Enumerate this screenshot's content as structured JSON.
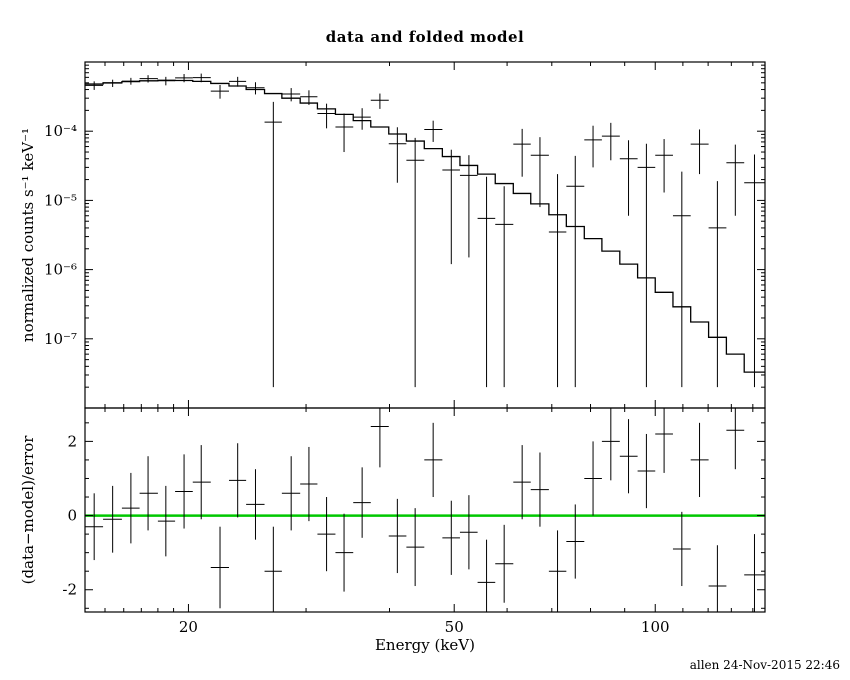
{
  "title": "data and folded model",
  "timestamp": "allen 24-Nov-2015 22:46",
  "colors": {
    "foreground": "#000000",
    "background": "#ffffff",
    "zero_line": "#00c800"
  },
  "x_axis": {
    "label": "Energy (keV)",
    "scale": "log",
    "lim": [
      14,
      146
    ],
    "major_ticks": [
      20,
      50,
      100
    ],
    "major_labels": [
      "20",
      "50",
      "100"
    ],
    "minor_ticks": [
      15,
      16,
      17,
      18,
      19,
      30,
      40,
      60,
      70,
      80,
      90,
      110,
      120,
      130,
      140
    ]
  },
  "chart_data": [
    {
      "id": "main",
      "type": "line",
      "title": "data and folded model",
      "ylabel": "normalized counts s⁻¹ keV⁻¹",
      "xlabel": "Energy (keV)",
      "xscale": "log",
      "yscale": "log",
      "xlim": [
        14,
        146
      ],
      "ylim": [
        1e-08,
        0.001
      ],
      "grid": false,
      "legend": null,
      "y_major_ticks": [
        0.0001,
        1e-05,
        1e-06,
        1e-07
      ],
      "y_major_labels": [
        "10⁻⁴",
        "10⁻⁵",
        "10⁻⁶",
        "10⁻⁷"
      ],
      "model_step": {
        "edges": [
          14.0,
          14.9,
          15.9,
          16.9,
          18.0,
          19.1,
          20.3,
          21.6,
          23.0,
          24.4,
          26.0,
          27.6,
          29.4,
          31.2,
          33.2,
          35.3,
          37.5,
          39.9,
          42.4,
          45.1,
          48.0,
          51.0,
          54.2,
          57.6,
          61.3,
          65.1,
          69.3,
          73.6,
          78.3,
          83.2,
          88.5,
          94.1,
          100.0,
          106.3,
          113.0,
          120.2,
          127.8,
          135.9,
          146.0
        ],
        "values": [
          0.00048,
          0.0005,
          0.00052,
          0.000535,
          0.000545,
          0.00054,
          0.000525,
          0.00049,
          0.00045,
          0.0004,
          0.00035,
          0.0003,
          0.000255,
          0.00021,
          0.000175,
          0.000142,
          0.000115,
          9.1e-05,
          7.2e-05,
          5.6e-05,
          4.3e-05,
          3.2e-05,
          2.4e-05,
          1.75e-05,
          1.26e-05,
          8.9e-06,
          6.2e-06,
          4.2e-06,
          2.8e-06,
          1.85e-06,
          1.2e-06,
          7.6e-07,
          4.7e-07,
          2.9e-07,
          1.75e-07,
          1.05e-07,
          6e-08,
          3.3e-08
        ]
      },
      "points": [
        [
          14.45,
          14.0,
          14.9,
          0.00046,
          0.000395,
          0.000525
        ],
        [
          15.4,
          14.9,
          15.9,
          0.000495,
          0.000435,
          0.000555
        ],
        [
          16.4,
          15.9,
          16.9,
          0.00053,
          0.00047,
          0.00059
        ],
        [
          17.4,
          16.9,
          18.0,
          0.000575,
          0.000505,
          0.000645
        ],
        [
          18.5,
          18.0,
          19.1,
          0.000535,
          0.00046,
          0.00061
        ],
        [
          19.7,
          19.1,
          20.3,
          0.00059,
          0.00051,
          0.00067
        ],
        [
          20.9,
          20.3,
          21.6,
          0.000595,
          0.00051,
          0.00068
        ],
        [
          22.3,
          21.6,
          23.0,
          0.00038,
          0.000295,
          0.000465
        ],
        [
          23.7,
          23.0,
          24.4,
          0.000525,
          0.00044,
          0.00061
        ],
        [
          25.2,
          24.4,
          26.0,
          0.000425,
          0.00034,
          0.00051
        ],
        [
          26.8,
          26.0,
          27.6,
          0.000135,
          2e-08,
          0.000265
        ],
        [
          28.5,
          27.6,
          29.4,
          0.000345,
          0.00027,
          0.00042
        ],
        [
          30.3,
          29.4,
          31.2,
          0.000315,
          0.00024,
          0.00039
        ],
        [
          32.2,
          31.2,
          33.2,
          0.00018,
          0.00011,
          0.00025
        ],
        [
          34.2,
          33.2,
          35.3,
          0.000115,
          5e-05,
          0.00018
        ],
        [
          36.4,
          35.3,
          37.5,
          0.00016,
          0.000105,
          0.000215
        ],
        [
          38.7,
          37.5,
          39.9,
          0.00028,
          0.00021,
          0.00035
        ],
        [
          41.1,
          39.9,
          42.4,
          6.6e-05,
          1.8e-05,
          0.000114
        ],
        [
          43.7,
          42.4,
          45.1,
          3.8e-05,
          2e-08,
          8e-05
        ],
        [
          46.5,
          45.1,
          48.0,
          0.000106,
          7e-05,
          0.000142
        ],
        [
          49.5,
          48.0,
          51.0,
          2.75e-05,
          1.2e-06,
          5.4e-05
        ],
        [
          52.6,
          51.0,
          54.2,
          2.3e-05,
          1.5e-06,
          4.5e-05
        ],
        [
          55.9,
          54.2,
          57.6,
          5.5e-06,
          2e-08,
          2.2e-05
        ],
        [
          59.4,
          57.6,
          61.3,
          4.5e-06,
          2e-08,
          1.6e-05
        ],
        [
          63.2,
          61.3,
          65.1,
          6.5e-05,
          2.2e-05,
          0.000108
        ],
        [
          67.2,
          65.1,
          69.3,
          4.5e-05,
          8e-06,
          8.2e-05
        ],
        [
          71.4,
          69.3,
          73.6,
          3.5e-06,
          2e-08,
          2.4e-05
        ],
        [
          75.9,
          73.6,
          78.3,
          1.6e-05,
          2e-08,
          4.4e-05
        ],
        [
          80.7,
          78.3,
          83.2,
          7.5e-05,
          3e-05,
          0.00012
        ],
        [
          85.8,
          83.2,
          88.5,
          8.5e-05,
          3.8e-05,
          0.000132
        ],
        [
          91.2,
          88.5,
          94.1,
          4e-05,
          6e-06,
          7.4e-05
        ],
        [
          97.0,
          94.1,
          100.0,
          3e-05,
          2e-08,
          6.6e-05
        ],
        [
          103.1,
          100.0,
          106.3,
          4.5e-05,
          1.3e-05,
          7.7e-05
        ],
        [
          109.6,
          106.3,
          113.0,
          6e-06,
          2e-08,
          2.6e-05
        ],
        [
          116.5,
          113.0,
          120.2,
          6.5e-05,
          2.4e-05,
          0.000106
        ],
        [
          123.9,
          120.2,
          127.8,
          4e-06,
          2e-08,
          1.9e-05
        ],
        [
          131.8,
          127.8,
          135.9,
          3.5e-05,
          6e-06,
          6.4e-05
        ],
        [
          140.8,
          135.9,
          146.0,
          1.8e-05,
          2e-08,
          4.6e-05
        ]
      ]
    },
    {
      "id": "residuals",
      "type": "scatter",
      "ylabel": "(data−model)/error",
      "xscale": "log",
      "yscale": "linear",
      "xlim": [
        14,
        146
      ],
      "ylim": [
        -2.6,
        2.9
      ],
      "grid": false,
      "legend": null,
      "y_major_ticks": [
        -2,
        0,
        2
      ],
      "y_major_labels": [
        "-2",
        "0",
        "2"
      ],
      "y_minor_ticks": [
        -2.5,
        -1.5,
        -1,
        -0.5,
        0.5,
        1,
        1.5,
        2.5
      ],
      "zero_line_y": 0,
      "points": [
        [
          14.45,
          14.0,
          14.9,
          -0.3,
          0.9
        ],
        [
          15.4,
          14.9,
          15.9,
          -0.1,
          0.9
        ],
        [
          16.4,
          15.9,
          16.9,
          0.2,
          0.95
        ],
        [
          17.4,
          16.9,
          18.0,
          0.6,
          1.0
        ],
        [
          18.5,
          18.0,
          19.1,
          -0.15,
          0.95
        ],
        [
          19.7,
          19.1,
          20.3,
          0.65,
          1.0
        ],
        [
          20.9,
          20.3,
          21.6,
          0.9,
          1.0
        ],
        [
          22.3,
          21.6,
          23.0,
          -1.4,
          1.1
        ],
        [
          23.7,
          23.0,
          24.4,
          0.95,
          1.0
        ],
        [
          25.2,
          24.4,
          26.0,
          0.3,
          0.95
        ],
        [
          26.8,
          26.0,
          27.6,
          -1.5,
          1.2
        ],
        [
          28.5,
          27.6,
          29.4,
          0.6,
          1.0
        ],
        [
          30.3,
          29.4,
          31.2,
          0.85,
          1.0
        ],
        [
          32.2,
          31.2,
          33.2,
          -0.5,
          1.0
        ],
        [
          34.2,
          33.2,
          35.3,
          -1.0,
          1.05
        ],
        [
          36.4,
          35.3,
          37.5,
          0.35,
          0.95
        ],
        [
          38.7,
          37.5,
          39.9,
          2.4,
          1.1
        ],
        [
          41.1,
          39.9,
          42.4,
          -0.55,
          1.0
        ],
        [
          43.7,
          42.4,
          45.1,
          -0.85,
          1.05
        ],
        [
          46.5,
          45.1,
          48.0,
          1.5,
          1.0
        ],
        [
          49.5,
          48.0,
          51.0,
          -0.6,
          1.0
        ],
        [
          52.6,
          51.0,
          54.2,
          -0.45,
          1.0
        ],
        [
          55.9,
          54.2,
          57.6,
          -1.8,
          1.15
        ],
        [
          59.4,
          57.6,
          61.3,
          -1.3,
          1.05
        ],
        [
          63.2,
          61.3,
          65.1,
          0.9,
          1.0
        ],
        [
          67.2,
          65.1,
          69.3,
          0.7,
          1.0
        ],
        [
          71.4,
          69.3,
          73.6,
          -1.5,
          1.1
        ],
        [
          75.9,
          73.6,
          78.3,
          -0.7,
          1.0
        ],
        [
          80.7,
          78.3,
          83.2,
          1.0,
          1.0
        ],
        [
          85.8,
          83.2,
          88.5,
          2.0,
          1.05
        ],
        [
          91.2,
          88.5,
          94.1,
          1.6,
          1.0
        ],
        [
          97.0,
          94.1,
          100.0,
          1.2,
          1.0
        ],
        [
          103.1,
          100.0,
          106.3,
          2.2,
          1.05
        ],
        [
          109.6,
          106.3,
          113.0,
          -0.9,
          1.0
        ],
        [
          116.5,
          113.0,
          120.2,
          1.5,
          1.0
        ],
        [
          123.9,
          120.2,
          127.8,
          -1.9,
          1.1
        ],
        [
          131.8,
          127.8,
          135.9,
          2.3,
          1.05
        ],
        [
          140.8,
          135.9,
          146.0,
          -1.6,
          1.1
        ]
      ]
    }
  ]
}
